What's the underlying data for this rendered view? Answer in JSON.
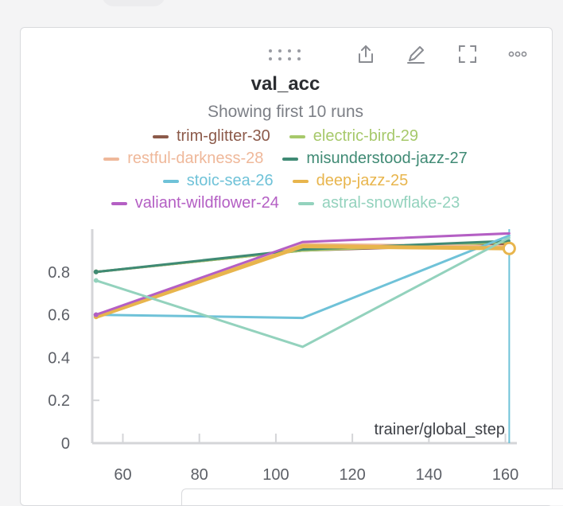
{
  "panel": {
    "title": "val_acc",
    "subtitle": "Showing first 10 runs",
    "toolbar": [
      {
        "name": "share-icon"
      },
      {
        "name": "edit-icon"
      },
      {
        "name": "fullscreen-icon"
      },
      {
        "name": "more-options-icon"
      }
    ]
  },
  "chart_data": {
    "type": "line",
    "title": "val_acc",
    "xlabel": "trainer/global_step",
    "ylabel": "",
    "xlim": [
      52,
      163
    ],
    "ylim": [
      0,
      1.0
    ],
    "x_ticks": [
      60,
      80,
      100,
      120,
      140,
      160
    ],
    "x_tick_labels": [
      "60",
      "80",
      "100",
      "120",
      "140",
      "160"
    ],
    "y_ticks": [
      0,
      0.2,
      0.4,
      0.6,
      0.8
    ],
    "y_tick_labels": [
      "0",
      "0.2",
      "0.4",
      "0.6",
      "0.8"
    ],
    "grid": false,
    "legend_placement": "top",
    "hover_x": 161,
    "series": [
      {
        "name": "trim-glitter-30",
        "color": "#8c5a4a",
        "x": [
          53,
          107,
          161
        ],
        "y": [
          0.8,
          0.9,
          0.93
        ]
      },
      {
        "name": "electric-bird-29",
        "color": "#a7c96b",
        "x": [
          53,
          107,
          161
        ],
        "y": [
          0.8,
          0.9,
          0.94
        ]
      },
      {
        "name": "restful-darkness-28",
        "color": "#efb89a",
        "x": [
          53,
          107,
          161
        ],
        "y": [
          0.6,
          0.93,
          0.92
        ]
      },
      {
        "name": "misunderstood-jazz-27",
        "color": "#3f8a74",
        "x": [
          53,
          107,
          161
        ],
        "y": [
          0.8,
          0.905,
          0.945
        ]
      },
      {
        "name": "stoic-sea-26",
        "color": "#6fc2d8",
        "x": [
          53,
          107,
          161
        ],
        "y": [
          0.6,
          0.585,
          0.97
        ]
      },
      {
        "name": "deep-jazz-25",
        "color": "#e8b54d",
        "x": [
          53,
          107,
          161
        ],
        "y": [
          0.59,
          0.92,
          0.91
        ]
      },
      {
        "name": "valiant-wildflower-24",
        "color": "#b45fc4",
        "x": [
          53,
          107,
          161
        ],
        "y": [
          0.6,
          0.94,
          0.98
        ]
      },
      {
        "name": "astral-snowflake-23",
        "color": "#93d2bd",
        "x": [
          53,
          107,
          161
        ],
        "y": [
          0.76,
          0.45,
          0.96
        ]
      }
    ]
  }
}
